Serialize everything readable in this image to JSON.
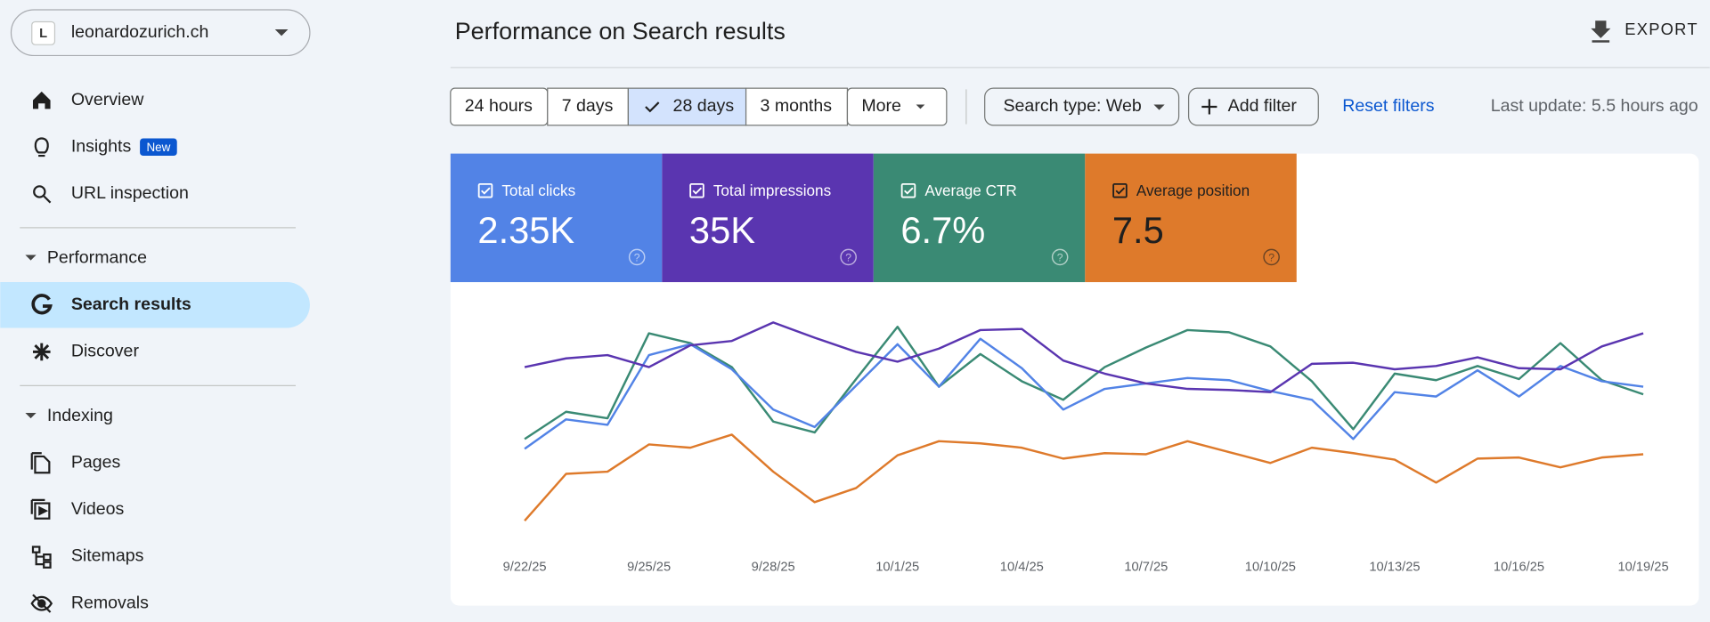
{
  "sidebar": {
    "property": {
      "initial": "L",
      "name": "leonardozurich.ch"
    },
    "top_items": [
      "Overview",
      "Insights",
      "URL inspection"
    ],
    "insights_badge": "New",
    "sections": [
      {
        "title": "Performance",
        "items": [
          "Search results",
          "Discover"
        ]
      },
      {
        "title": "Indexing",
        "items": [
          "Pages",
          "Videos",
          "Sitemaps",
          "Removals"
        ]
      }
    ]
  },
  "header": {
    "title": "Performance on Search results",
    "export": "EXPORT"
  },
  "filters": {
    "date_ranges": [
      "24 hours",
      "7 days",
      "28 days",
      "3 months",
      "More"
    ],
    "search_type": "Search type: Web",
    "add_filter": "Add filter",
    "reset": "Reset filters",
    "last_update": "Last update: 5.5 hours ago"
  },
  "metrics": [
    "2.35K",
    "35K",
    "6.7%",
    "7.5"
  ],
  "chart_data": {
    "type": "line",
    "categories": [
      "9/22/25",
      null,
      null,
      "9/25/25",
      null,
      null,
      "9/28/25",
      null,
      null,
      "10/1/25",
      null,
      null,
      "10/4/25",
      null,
      null,
      "10/7/25",
      null,
      null,
      "10/10/25",
      null,
      null,
      "10/13/25",
      null,
      null,
      "10/16/25",
      null,
      null,
      "10/19/25"
    ],
    "series": [
      {
        "name": "Total clicks",
        "color": "#5283e6",
        "values": [
          88,
          115,
          110,
          174,
          184,
          161,
          124,
          108,
          146,
          184,
          145,
          189,
          162,
          124,
          143,
          148,
          153,
          151,
          141,
          133,
          97,
          140,
          136,
          160,
          136,
          164,
          150,
          145
        ]
      },
      {
        "name": "Total impressions",
        "color": "#5a35b0",
        "values": [
          163,
          171,
          174,
          163,
          183,
          187,
          204,
          190,
          177,
          168,
          180,
          197,
          198,
          169,
          157,
          148,
          143,
          142,
          140,
          166,
          167,
          161,
          164,
          172,
          162,
          161,
          182,
          194
        ]
      },
      {
        "name": "Average CTR",
        "color": "#3a8a74",
        "values": [
          97,
          122,
          116,
          194,
          185,
          163,
          113,
          103,
          152,
          200,
          145,
          175,
          150,
          133,
          163,
          181,
          197,
          195,
          182,
          150,
          106,
          157,
          151,
          164,
          152,
          185,
          151,
          138
        ]
      },
      {
        "name": "Average position",
        "color": "#de7a2b",
        "values": [
          22,
          65,
          67,
          92,
          89,
          101,
          67,
          39,
          52,
          82,
          95,
          93,
          89,
          79,
          84,
          83,
          95,
          85,
          75,
          89,
          84,
          78,
          57,
          79,
          80,
          71,
          80,
          83
        ]
      }
    ]
  }
}
